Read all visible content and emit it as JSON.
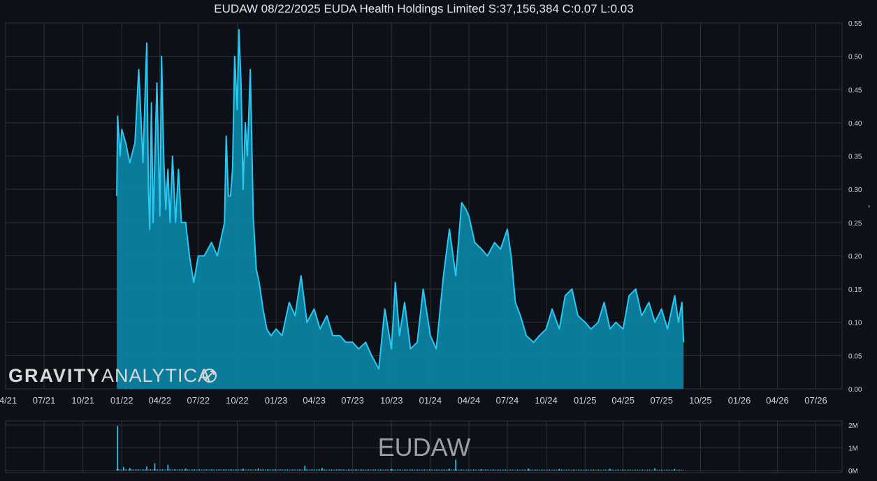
{
  "chart_data": {
    "type": "area",
    "title": "EUDAW 08/22/2025 EUDA Health Holdings Limited S:37,156,384 C:0.07 L:0.03",
    "xlabel": "",
    "ylabel": "",
    "ylim": [
      0,
      0.55
    ],
    "x_tick_labels": [
      "04/21",
      "07/21",
      "10/21",
      "01/22",
      "04/22",
      "07/22",
      "10/22",
      "01/23",
      "04/23",
      "07/23",
      "10/23",
      "01/24",
      "04/24",
      "07/24",
      "10/24",
      "01/25",
      "04/25",
      "07/25",
      "10/25",
      "01/26",
      "04/26",
      "07/26"
    ],
    "y_tick_labels": [
      "0.00",
      "0.05",
      "0.10",
      "0.15",
      "0.20",
      "0.25",
      "0.30",
      "0.35",
      "0.40",
      "0.45",
      "0.50",
      "0.55"
    ],
    "grid": true,
    "line_color": "#29c8f2",
    "fill_color": "#0b87a8",
    "series": [
      {
        "x": [
          "2021-12-20",
          "2021-12-22",
          "2021-12-28",
          "2022-01-01",
          "2022-01-10",
          "2022-01-20",
          "2022-02-01",
          "2022-02-10",
          "2022-02-20",
          "2022-03-01",
          "2022-03-05",
          "2022-03-08",
          "2022-03-12",
          "2022-03-16",
          "2022-03-20",
          "2022-03-25",
          "2022-04-01",
          "2022-04-05",
          "2022-04-10",
          "2022-04-15",
          "2022-04-20",
          "2022-04-25",
          "2022-05-01",
          "2022-05-08",
          "2022-05-15",
          "2022-05-22",
          "2022-06-01",
          "2022-06-10",
          "2022-06-20",
          "2022-07-01",
          "2022-07-15",
          "2022-08-01",
          "2022-08-15",
          "2022-09-01",
          "2022-09-05",
          "2022-09-10",
          "2022-09-15",
          "2022-09-20",
          "2022-09-25",
          "2022-10-01",
          "2022-10-05",
          "2022-10-10",
          "2022-10-15",
          "2022-10-20",
          "2022-10-25",
          "2022-11-01",
          "2022-11-08",
          "2022-11-15",
          "2022-11-22",
          "2022-12-01",
          "2022-12-10",
          "2022-12-20",
          "2023-01-01",
          "2023-01-15",
          "2023-02-01",
          "2023-02-15",
          "2023-03-01",
          "2023-03-15",
          "2023-04-01",
          "2023-04-15",
          "2023-05-01",
          "2023-05-15",
          "2023-06-01",
          "2023-06-15",
          "2023-07-01",
          "2023-07-15",
          "2023-08-01",
          "2023-08-15",
          "2023-09-01",
          "2023-09-15",
          "2023-10-01",
          "2023-10-10",
          "2023-10-20",
          "2023-11-01",
          "2023-11-15",
          "2023-12-01",
          "2023-12-15",
          "2024-01-01",
          "2024-01-15",
          "2024-02-01",
          "2024-02-15",
          "2024-03-01",
          "2024-03-15",
          "2024-03-25",
          "2024-04-01",
          "2024-04-15",
          "2024-05-01",
          "2024-05-15",
          "2024-06-01",
          "2024-06-15",
          "2024-07-01",
          "2024-07-10",
          "2024-07-20",
          "2024-08-01",
          "2024-08-15",
          "2024-09-01",
          "2024-09-15",
          "2024-10-01",
          "2024-10-15",
          "2024-11-01",
          "2024-11-15",
          "2024-12-01",
          "2024-12-15",
          "2025-01-01",
          "2025-01-15",
          "2025-02-01",
          "2025-02-15",
          "2025-03-01",
          "2025-03-15",
          "2025-04-01",
          "2025-04-15",
          "2025-05-01",
          "2025-05-15",
          "2025-06-01",
          "2025-06-15",
          "2025-07-01",
          "2025-07-15",
          "2025-08-01",
          "2025-08-10",
          "2025-08-18",
          "2025-08-22"
        ],
        "values": [
          0.29,
          0.41,
          0.35,
          0.39,
          0.37,
          0.34,
          0.37,
          0.48,
          0.34,
          0.52,
          0.3,
          0.24,
          0.43,
          0.25,
          0.34,
          0.46,
          0.26,
          0.5,
          0.35,
          0.27,
          0.33,
          0.25,
          0.35,
          0.25,
          0.33,
          0.25,
          0.25,
          0.2,
          0.16,
          0.2,
          0.2,
          0.22,
          0.2,
          0.25,
          0.38,
          0.29,
          0.29,
          0.33,
          0.5,
          0.42,
          0.54,
          0.46,
          0.3,
          0.4,
          0.35,
          0.48,
          0.26,
          0.18,
          0.16,
          0.12,
          0.09,
          0.08,
          0.09,
          0.08,
          0.13,
          0.11,
          0.17,
          0.1,
          0.12,
          0.09,
          0.11,
          0.08,
          0.08,
          0.07,
          0.07,
          0.06,
          0.07,
          0.05,
          0.03,
          0.12,
          0.06,
          0.16,
          0.08,
          0.13,
          0.06,
          0.07,
          0.15,
          0.08,
          0.06,
          0.17,
          0.24,
          0.17,
          0.28,
          0.27,
          0.26,
          0.22,
          0.21,
          0.2,
          0.22,
          0.21,
          0.24,
          0.2,
          0.13,
          0.11,
          0.08,
          0.07,
          0.08,
          0.09,
          0.12,
          0.09,
          0.14,
          0.15,
          0.11,
          0.1,
          0.09,
          0.1,
          0.13,
          0.09,
          0.1,
          0.09,
          0.14,
          0.15,
          0.11,
          0.13,
          0.1,
          0.12,
          0.09,
          0.14,
          0.1,
          0.13,
          0.07
        ]
      }
    ],
    "volume": {
      "y_tick_labels": [
        "0M",
        "1M",
        "2M"
      ],
      "max": 2000000,
      "spikes": [
        {
          "x": "2021-12-22",
          "v": 1970000
        },
        {
          "x": "2022-01-05",
          "v": 160000
        },
        {
          "x": "2022-01-20",
          "v": 110000
        },
        {
          "x": "2022-03-01",
          "v": 180000
        },
        {
          "x": "2022-03-20",
          "v": 320000
        },
        {
          "x": "2022-04-20",
          "v": 250000
        },
        {
          "x": "2022-06-01",
          "v": 90000
        },
        {
          "x": "2022-10-15",
          "v": 80000
        },
        {
          "x": "2022-11-20",
          "v": 100000
        },
        {
          "x": "2023-03-10",
          "v": 210000
        },
        {
          "x": "2023-04-20",
          "v": 120000
        },
        {
          "x": "2023-06-01",
          "v": 60000
        },
        {
          "x": "2023-10-01",
          "v": 70000
        },
        {
          "x": "2024-02-15",
          "v": 80000
        },
        {
          "x": "2024-03-01",
          "v": 480000
        },
        {
          "x": "2024-05-01",
          "v": 60000
        },
        {
          "x": "2024-08-20",
          "v": 90000
        },
        {
          "x": "2024-11-01",
          "v": 70000
        },
        {
          "x": "2025-03-01",
          "v": 80000
        },
        {
          "x": "2025-06-15",
          "v": 100000
        },
        {
          "x": "2025-08-01",
          "v": 70000
        }
      ]
    }
  },
  "watermark": {
    "ticker": "EUDAW",
    "logo_bold": "GRAVITY",
    "logo_light": "ANALYTICA"
  }
}
